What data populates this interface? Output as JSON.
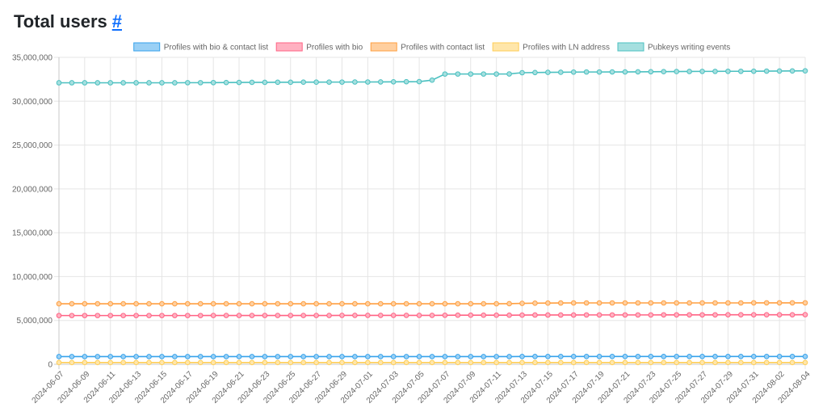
{
  "page": {
    "title": "Total users",
    "anchor": "#"
  },
  "chart_data": {
    "type": "line",
    "title": "",
    "xlabel": "",
    "ylabel": "",
    "ylim": [
      0,
      35000000
    ],
    "y_ticks": [
      "0",
      "5,000,000",
      "10,000,000",
      "15,000,000",
      "20,000,000",
      "25,000,000",
      "30,000,000",
      "35,000,000"
    ],
    "grid": true,
    "legend_position": "top",
    "x": [
      "2024-06-07",
      "2024-06-08",
      "2024-06-09",
      "2024-06-10",
      "2024-06-11",
      "2024-06-12",
      "2024-06-13",
      "2024-06-14",
      "2024-06-15",
      "2024-06-16",
      "2024-06-17",
      "2024-06-18",
      "2024-06-19",
      "2024-06-20",
      "2024-06-21",
      "2024-06-22",
      "2024-06-23",
      "2024-06-24",
      "2024-06-25",
      "2024-06-26",
      "2024-06-27",
      "2024-06-28",
      "2024-06-29",
      "2024-06-30",
      "2024-07-01",
      "2024-07-02",
      "2024-07-03",
      "2024-07-04",
      "2024-07-05",
      "2024-07-06",
      "2024-07-07",
      "2024-07-08",
      "2024-07-09",
      "2024-07-10",
      "2024-07-11",
      "2024-07-12",
      "2024-07-13",
      "2024-07-14",
      "2024-07-15",
      "2024-07-16",
      "2024-07-17",
      "2024-07-18",
      "2024-07-19",
      "2024-07-20",
      "2024-07-21",
      "2024-07-22",
      "2024-07-23",
      "2024-07-24",
      "2024-07-25",
      "2024-07-26",
      "2024-07-27",
      "2024-07-28",
      "2024-07-29",
      "2024-07-30",
      "2024-07-31",
      "2024-08-01",
      "2024-08-02",
      "2024-08-03",
      "2024-08-04"
    ],
    "x_tick_labels": [
      "2024-06-07",
      "2024-06-09",
      "2024-06-11",
      "2024-06-13",
      "2024-06-15",
      "2024-06-17",
      "2024-06-19",
      "2024-06-21",
      "2024-06-23",
      "2024-06-25",
      "2024-06-27",
      "2024-06-29",
      "2024-07-01",
      "2024-07-03",
      "2024-07-05",
      "2024-07-07",
      "2024-07-09",
      "2024-07-11",
      "2024-07-13",
      "2024-07-15",
      "2024-07-17",
      "2024-07-19",
      "2024-07-21",
      "2024-07-23",
      "2024-07-25",
      "2024-07-27",
      "2024-07-29",
      "2024-07-31",
      "2024-08-02",
      "2024-08-04"
    ],
    "series": [
      {
        "name": "Profiles with bio & contact list",
        "color": "#36a2eb",
        "fill": "#9ad0f5",
        "values": [
          880000,
          880000,
          880000,
          880000,
          880000,
          880000,
          880000,
          880000,
          880000,
          880000,
          880000,
          880000,
          880000,
          880000,
          880000,
          880000,
          880000,
          880000,
          880000,
          880000,
          880000,
          880000,
          880000,
          880000,
          880000,
          880000,
          880000,
          880000,
          880000,
          880000,
          880000,
          880000,
          880000,
          880000,
          880000,
          880000,
          890000,
          890000,
          890000,
          890000,
          890000,
          890000,
          890000,
          890000,
          890000,
          890000,
          890000,
          890000,
          890000,
          890000,
          890000,
          890000,
          890000,
          890000,
          890000,
          890000,
          890000,
          890000,
          890000
        ]
      },
      {
        "name": "Profiles with bio",
        "color": "#ff6384",
        "fill": "#ffb1c1",
        "values": [
          5560000,
          5560000,
          5560000,
          5560000,
          5560000,
          5560000,
          5560000,
          5560000,
          5560000,
          5560000,
          5560000,
          5560000,
          5570000,
          5570000,
          5570000,
          5570000,
          5570000,
          5570000,
          5570000,
          5570000,
          5570000,
          5570000,
          5580000,
          5580000,
          5580000,
          5580000,
          5580000,
          5580000,
          5580000,
          5580000,
          5590000,
          5600000,
          5600000,
          5600000,
          5600000,
          5600000,
          5610000,
          5620000,
          5620000,
          5620000,
          5620000,
          5630000,
          5630000,
          5630000,
          5630000,
          5630000,
          5630000,
          5640000,
          5640000,
          5640000,
          5640000,
          5640000,
          5650000,
          5650000,
          5650000,
          5650000,
          5650000,
          5650000,
          5660000
        ]
      },
      {
        "name": "Profiles with contact list",
        "color": "#ff9f40",
        "fill": "#ffcf9f",
        "values": [
          6900000,
          6900000,
          6900000,
          6900000,
          6900000,
          6900000,
          6900000,
          6900000,
          6900000,
          6900000,
          6900000,
          6900000,
          6900000,
          6900000,
          6900000,
          6900000,
          6900000,
          6900000,
          6900000,
          6900000,
          6900000,
          6900000,
          6900000,
          6900000,
          6900000,
          6900000,
          6900000,
          6900000,
          6900000,
          6900000,
          6900000,
          6900000,
          6900000,
          6900000,
          6900000,
          6910000,
          6950000,
          6970000,
          6980000,
          6990000,
          7000000,
          7000000,
          7000000,
          7000000,
          7000000,
          7000000,
          7000000,
          7000000,
          7000000,
          7000000,
          7000000,
          7000000,
          7000000,
          7000000,
          7010000,
          7010000,
          7010000,
          7010000,
          7010000
        ]
      },
      {
        "name": "Profiles with LN address",
        "color": "#ffcd56",
        "fill": "#ffe6aa",
        "values": [
          200000,
          200000,
          200000,
          200000,
          200000,
          200000,
          200000,
          200000,
          200000,
          200000,
          200000,
          200000,
          200000,
          200000,
          200000,
          200000,
          200000,
          200000,
          200000,
          200000,
          200000,
          200000,
          200000,
          200000,
          200000,
          200000,
          200000,
          200000,
          200000,
          200000,
          200000,
          200000,
          200000,
          200000,
          200000,
          200000,
          200000,
          200000,
          200000,
          200000,
          200000,
          200000,
          200000,
          200000,
          200000,
          200000,
          200000,
          200000,
          200000,
          200000,
          200000,
          200000,
          200000,
          200000,
          200000,
          200000,
          200000,
          200000,
          200000
        ]
      },
      {
        "name": "Pubkeys writing events",
        "color": "#4bc0c0",
        "fill": "#a5dfdf",
        "values": [
          32100000,
          32100000,
          32100000,
          32100000,
          32100000,
          32100000,
          32100000,
          32100000,
          32100000,
          32100000,
          32110000,
          32110000,
          32120000,
          32130000,
          32140000,
          32150000,
          32150000,
          32160000,
          32160000,
          32170000,
          32170000,
          32180000,
          32180000,
          32190000,
          32190000,
          32200000,
          32210000,
          32220000,
          32230000,
          32400000,
          33100000,
          33100000,
          33100000,
          33100000,
          33100000,
          33110000,
          33250000,
          33270000,
          33290000,
          33300000,
          33320000,
          33330000,
          33330000,
          33340000,
          33340000,
          33350000,
          33360000,
          33370000,
          33380000,
          33390000,
          33400000,
          33400000,
          33410000,
          33410000,
          33420000,
          33430000,
          33440000,
          33450000,
          33460000
        ]
      }
    ]
  }
}
